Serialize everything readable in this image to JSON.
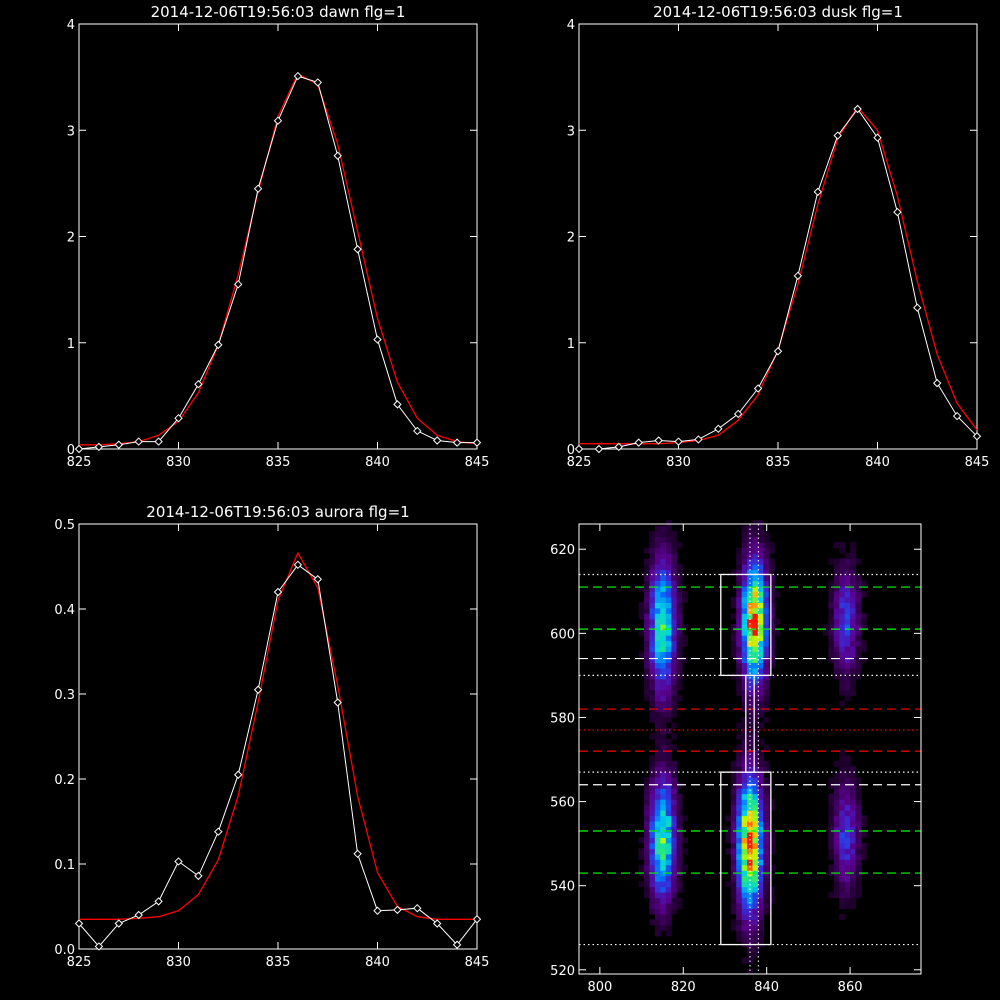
{
  "chart_data": [
    {
      "type": "line",
      "title": "2014-12-06T19:56:03 dawn flg=1",
      "xlim": [
        825,
        845
      ],
      "ylim": [
        0,
        4
      ],
      "xticks": [
        825,
        830,
        835,
        840,
        845
      ],
      "yticks": [
        0,
        1,
        2,
        3,
        4
      ],
      "series": [
        {
          "role": "data",
          "color": "#ffffff",
          "x": [
            825,
            826,
            827,
            828,
            829,
            830,
            831,
            832,
            833,
            834,
            835,
            836,
            837,
            838,
            839,
            840,
            841,
            842,
            843,
            844,
            845
          ],
          "y": [
            0.0,
            0.02,
            0.04,
            0.07,
            0.07,
            0.29,
            0.61,
            0.98,
            1.55,
            2.45,
            3.09,
            3.51,
            3.45,
            2.76,
            1.88,
            1.03,
            0.42,
            0.17,
            0.08,
            0.06,
            0.06
          ]
        },
        {
          "role": "fit",
          "color": "#ff0000",
          "x": [
            825,
            826,
            827,
            828,
            829,
            830,
            831,
            832,
            833,
            834,
            835,
            836,
            837,
            838,
            839,
            840,
            841,
            842,
            843,
            844,
            845
          ],
          "y": [
            0.04,
            0.04,
            0.05,
            0.07,
            0.13,
            0.26,
            0.53,
            0.98,
            1.64,
            2.42,
            3.13,
            3.53,
            3.43,
            2.87,
            2.05,
            1.23,
            0.63,
            0.29,
            0.13,
            0.07,
            0.05
          ]
        }
      ]
    },
    {
      "type": "line",
      "title": "2014-12-06T19:56:03 dusk flg=1",
      "xlim": [
        825,
        845
      ],
      "ylim": [
        0,
        4
      ],
      "xticks": [
        825,
        830,
        835,
        840,
        845
      ],
      "yticks": [
        0,
        1,
        2,
        3,
        4
      ],
      "series": [
        {
          "role": "data",
          "color": "#ffffff",
          "x": [
            825,
            826,
            827,
            828,
            829,
            830,
            831,
            832,
            833,
            834,
            835,
            836,
            837,
            838,
            839,
            840,
            841,
            842,
            843,
            844,
            845
          ],
          "y": [
            0.0,
            0.0,
            0.02,
            0.06,
            0.08,
            0.07,
            0.09,
            0.19,
            0.33,
            0.57,
            0.92,
            1.63,
            2.42,
            2.95,
            3.2,
            2.93,
            2.23,
            1.33,
            0.62,
            0.31,
            0.12
          ]
        },
        {
          "role": "fit",
          "color": "#ff0000",
          "x": [
            825,
            826,
            827,
            828,
            829,
            830,
            831,
            832,
            833,
            834,
            835,
            836,
            837,
            838,
            839,
            840,
            841,
            842,
            843,
            844,
            845
          ],
          "y": [
            0.05,
            0.05,
            0.05,
            0.05,
            0.05,
            0.06,
            0.08,
            0.13,
            0.27,
            0.51,
            0.93,
            1.55,
            2.3,
            2.92,
            3.22,
            3.0,
            2.38,
            1.58,
            0.89,
            0.43,
            0.18
          ]
        }
      ]
    },
    {
      "type": "line",
      "title": "2014-12-06T19:56:03 aurora flg=1",
      "xlim": [
        825,
        845
      ],
      "ylim": [
        0,
        0.5
      ],
      "xticks": [
        825,
        830,
        835,
        840,
        845
      ],
      "yticks": [
        0.0,
        0.1,
        0.2,
        0.3,
        0.4,
        0.5
      ],
      "series": [
        {
          "role": "data",
          "color": "#ffffff",
          "x": [
            825,
            826,
            827,
            828,
            829,
            830,
            831,
            832,
            833,
            834,
            835,
            836,
            837,
            838,
            839,
            840,
            841,
            842,
            843,
            844,
            845
          ],
          "y": [
            0.03,
            0.003,
            0.03,
            0.04,
            0.056,
            0.103,
            0.086,
            0.138,
            0.205,
            0.305,
            0.42,
            0.452,
            0.435,
            0.29,
            0.112,
            0.045,
            0.046,
            0.048,
            0.03,
            0.005,
            0.035
          ]
        },
        {
          "role": "fit",
          "color": "#ff0000",
          "x": [
            825,
            826,
            827,
            828,
            829,
            830,
            831,
            832,
            833,
            834,
            835,
            836,
            837,
            838,
            839,
            840,
            841,
            842,
            843,
            844,
            845
          ],
          "y": [
            0.035,
            0.035,
            0.035,
            0.036,
            0.038,
            0.045,
            0.064,
            0.105,
            0.18,
            0.29,
            0.41,
            0.466,
            0.425,
            0.31,
            0.18,
            0.09,
            0.05,
            0.038,
            0.035,
            0.035,
            0.035
          ]
        }
      ]
    },
    {
      "type": "heatmap",
      "title": "",
      "xlim": [
        795,
        877
      ],
      "ylim": [
        519,
        626
      ],
      "xticks": [
        800,
        820,
        840,
        860
      ],
      "yticks": [
        520,
        540,
        560,
        580,
        600,
        620
      ],
      "blobs": [
        {
          "cx": 815,
          "cy": 602,
          "sx": 2.2,
          "sy": 11,
          "amp": 0.62
        },
        {
          "cx": 815,
          "cy": 551,
          "sx": 2.2,
          "sy": 10,
          "amp": 0.66
        },
        {
          "cx": 837,
          "cy": 603,
          "sx": 2.1,
          "sy": 10,
          "amp": 0.95
        },
        {
          "cx": 836,
          "cy": 550,
          "sx": 2.1,
          "sy": 11,
          "amp": 0.98
        },
        {
          "cx": 859,
          "cy": 603,
          "sx": 2.2,
          "sy": 9,
          "amp": 0.34
        },
        {
          "cx": 859,
          "cy": 552,
          "sx": 2.2,
          "sy": 9,
          "amp": 0.33
        }
      ],
      "boxes": [
        {
          "x0": 829,
          "x1": 841,
          "y0": 590,
          "y1": 614,
          "color": "#ffffff"
        },
        {
          "x0": 829,
          "x1": 841,
          "y0": 526,
          "y1": 567,
          "color": "#ffffff"
        },
        {
          "x0": 835,
          "x1": 837,
          "y0": 567,
          "y1": 590,
          "color": "#ffffff"
        }
      ],
      "hlines": [
        {
          "y": 611,
          "color": "#00ff00",
          "style": "dashed"
        },
        {
          "y": 601,
          "color": "#00ff00",
          "style": "dashed"
        },
        {
          "y": 594,
          "color": "#ffffff",
          "style": "dashed"
        },
        {
          "y": 582,
          "color": "#ff0000",
          "style": "dashed"
        },
        {
          "y": 572,
          "color": "#ff0000",
          "style": "dashed"
        },
        {
          "y": 564,
          "color": "#ffffff",
          "style": "dashed"
        },
        {
          "y": 553,
          "color": "#00ff00",
          "style": "dashed"
        },
        {
          "y": 543,
          "color": "#00ff00",
          "style": "dashed"
        },
        {
          "y": 614,
          "color": "#ffffff",
          "style": "dotted"
        },
        {
          "y": 590,
          "color": "#ffffff",
          "style": "dotted"
        },
        {
          "y": 577,
          "color": "#ff0000",
          "style": "dotted"
        },
        {
          "y": 567,
          "color": "#ffffff",
          "style": "dotted"
        },
        {
          "y": 526,
          "color": "#ffffff",
          "style": "dotted"
        }
      ],
      "vlines": [
        {
          "x": 836,
          "color": "#ffffff",
          "style": "dotted"
        },
        {
          "x": 838,
          "color": "#ffffff",
          "style": "dotted"
        }
      ]
    }
  ]
}
